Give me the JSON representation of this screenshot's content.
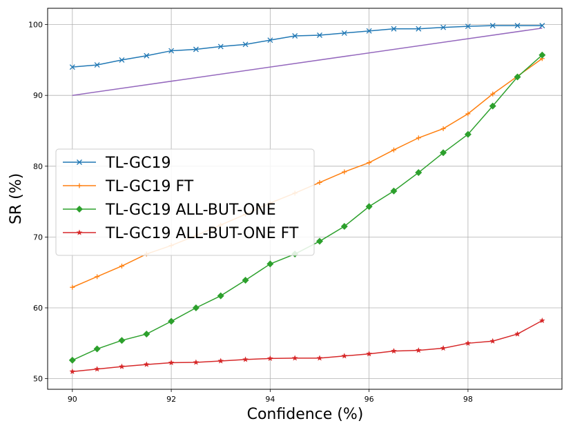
{
  "chart_data": {
    "type": "line",
    "xlabel": "Confidence (%)",
    "ylabel": "SR (%)",
    "xlim": [
      89.5,
      99.9
    ],
    "ylim": [
      48.5,
      102.3
    ],
    "x_ticks": [
      90,
      92,
      94,
      96,
      98
    ],
    "y_ticks": [
      50,
      60,
      70,
      80,
      90,
      100
    ],
    "grid": true,
    "legend_position": "center-left",
    "series": [
      {
        "name": "TL-GC19",
        "color": "#1f77b4",
        "marker": "x",
        "x": [
          90,
          90.5,
          91,
          91.5,
          92,
          92.5,
          93,
          93.5,
          94,
          94.5,
          95,
          95.5,
          96,
          96.5,
          97,
          97.5,
          98,
          98.5,
          99,
          99.5
        ],
        "y": [
          94.0,
          94.3,
          95.0,
          95.6,
          96.3,
          96.5,
          96.9,
          97.2,
          97.8,
          98.4,
          98.5,
          98.8,
          99.1,
          99.4,
          99.4,
          99.6,
          99.75,
          99.85,
          99.85,
          99.85
        ]
      },
      {
        "name": "TL-GC19 FT",
        "color": "#ff7f0e",
        "marker": "plus",
        "x": [
          90,
          90.5,
          91,
          91.5,
          92,
          92.5,
          93,
          93.5,
          94,
          94.5,
          95,
          95.5,
          96,
          96.5,
          97,
          97.5,
          98,
          98.5,
          99,
          99.5
        ],
        "y": [
          62.9,
          64.4,
          65.9,
          67.6,
          68.8,
          70.2,
          71.7,
          73.2,
          74.8,
          76.2,
          77.7,
          79.2,
          80.5,
          82.3,
          84.0,
          85.3,
          87.4,
          90.2,
          92.7,
          95.2
        ]
      },
      {
        "name": "TL-GC19 ALL-BUT-ONE",
        "color": "#2ca02c",
        "marker": "diamond",
        "x": [
          90,
          90.5,
          91,
          91.5,
          92,
          92.5,
          93,
          93.5,
          94,
          94.5,
          95,
          95.5,
          96,
          96.5,
          97,
          97.5,
          98,
          98.5,
          99,
          99.5
        ],
        "y": [
          52.6,
          54.2,
          55.4,
          56.3,
          58.1,
          60.0,
          61.7,
          63.9,
          66.2,
          67.6,
          69.4,
          71.5,
          74.3,
          76.5,
          79.1,
          81.9,
          84.5,
          88.5,
          92.6,
          95.7
        ]
      },
      {
        "name": "TL-GC19 ALL-BUT-ONE FT",
        "color": "#d62728",
        "marker": "star",
        "x": [
          90,
          90.5,
          91,
          91.5,
          92,
          92.5,
          93,
          93.5,
          94,
          94.5,
          95,
          95.5,
          96,
          96.5,
          97,
          97.5,
          98,
          98.5,
          99,
          99.5
        ],
        "y": [
          51.0,
          51.35,
          51.7,
          52.0,
          52.25,
          52.3,
          52.5,
          52.7,
          52.85,
          52.9,
          52.9,
          53.2,
          53.5,
          53.9,
          54.0,
          54.3,
          55.0,
          55.3,
          56.3,
          58.2
        ]
      },
      {
        "color": "#9467bd",
        "marker": "none",
        "x": [
          90,
          99.5
        ],
        "y": [
          90,
          99.5
        ]
      }
    ]
  }
}
